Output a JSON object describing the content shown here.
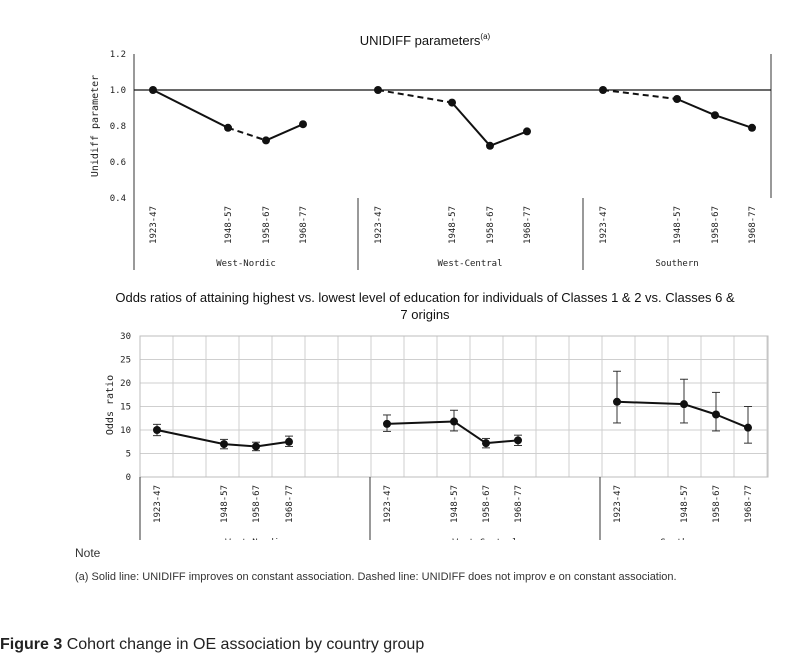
{
  "chart_data": [
    {
      "type": "line",
      "title": "UNIDIFF parameters",
      "title_sup": "(a)",
      "ylabel": "Unidiff parameter",
      "ylim": [
        0.4,
        1.2
      ],
      "yticks": [
        "0.4",
        "0.6",
        "0.8",
        "1.0",
        "1.2"
      ],
      "reference_line": 1.0,
      "groups": [
        {
          "name": "West-Nordic",
          "categories": [
            "1923-47",
            "1948-57",
            "1958-67",
            "1968-77"
          ],
          "values": [
            1.0,
            0.79,
            0.72,
            0.81
          ],
          "segment_styles": [
            "solid",
            "dashed",
            "solid"
          ]
        },
        {
          "name": "West-Central",
          "categories": [
            "1923-47",
            "1948-57",
            "1958-67",
            "1968-77"
          ],
          "values": [
            1.0,
            0.93,
            0.69,
            0.77
          ],
          "segment_styles": [
            "dashed",
            "solid",
            "solid"
          ]
        },
        {
          "name": "Southern",
          "categories": [
            "1923-47",
            "1948-57",
            "1958-67",
            "1968-77"
          ],
          "values": [
            1.0,
            0.95,
            0.86,
            0.79
          ],
          "segment_styles": [
            "dashed",
            "solid",
            "solid"
          ]
        }
      ]
    },
    {
      "type": "line",
      "title": "Odds ratios of attaining highest vs. lowest level of education for individuals of Classes 1 & 2 vs. Classes 6 & 7 origins",
      "title_lines": [
        "Odds ratios of attaining highest vs. lowest level of education for individuals of Classes 1 & 2 vs. Classes 6 &",
        "7 origins"
      ],
      "ylabel": "Odds ratio",
      "ylim": [
        0,
        30
      ],
      "yticks": [
        "0",
        "5",
        "10",
        "15",
        "20",
        "25",
        "30"
      ],
      "grid": true,
      "groups": [
        {
          "name": "West-Nordic",
          "categories": [
            "1923-47",
            "1948-57",
            "1958-67",
            "1968-77"
          ],
          "values": [
            10,
            7,
            6.5,
            7.5
          ],
          "ci_low": [
            8.8,
            6,
            5.6,
            6.5
          ],
          "ci_high": [
            11.2,
            8,
            7.4,
            8.7
          ]
        },
        {
          "name": "West-Central",
          "categories": [
            "1923-47",
            "1948-57",
            "1958-67",
            "1968-77"
          ],
          "values": [
            11.3,
            11.8,
            7.2,
            7.8
          ],
          "ci_low": [
            9.7,
            9.8,
            6.2,
            6.7
          ],
          "ci_high": [
            13.2,
            14.2,
            8.2,
            8.9
          ]
        },
        {
          "name": "Southern",
          "categories": [
            "1923-47",
            "1948-57",
            "1958-67",
            "1968-77"
          ],
          "values": [
            16,
            15.5,
            13.3,
            10.5
          ],
          "ci_low": [
            11.5,
            11.5,
            9.8,
            7.2
          ],
          "ci_high": [
            22.5,
            20.8,
            18,
            15
          ]
        }
      ]
    }
  ],
  "note": {
    "label": "Note",
    "text": "(a) Solid line: UNIDIFF improves on constant association. Dashed line: UNIDIFF does not improv e on constant association."
  },
  "caption": {
    "label": "Figure 3",
    "text": "Cohort change in OE association by country group"
  }
}
